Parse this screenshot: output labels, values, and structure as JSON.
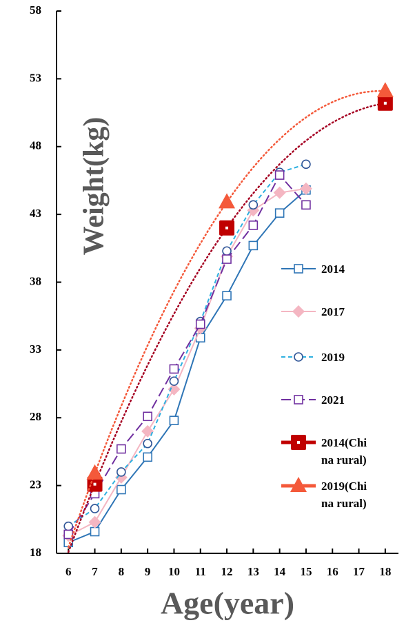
{
  "chart_data": {
    "type": "line",
    "x_label": "Age(year)",
    "y_label": "Weight(kg)",
    "xlim": [
      5.55,
      18.5
    ],
    "xticks": [
      6,
      7,
      8,
      9,
      10,
      11,
      12,
      13,
      14,
      15,
      16,
      17,
      18
    ],
    "ylim": [
      18,
      58
    ],
    "yticks": [
      18,
      23,
      28,
      33,
      38,
      43,
      48,
      53,
      58
    ],
    "series": [
      {
        "name": "2014",
        "color": "#2e75b6",
        "marker": "square",
        "dash": "solid",
        "x": [
          6,
          7,
          8,
          9,
          10,
          11,
          12,
          13,
          14,
          15
        ],
        "values": [
          18.8,
          19.6,
          22.7,
          25.1,
          27.8,
          33.9,
          37.0,
          40.7,
          43.1,
          44.8
        ]
      },
      {
        "name": "2017",
        "color": "#f4b6c2",
        "marker": "diamond",
        "dash": "solid",
        "x": [
          6,
          7,
          8,
          9,
          10,
          11,
          12,
          13,
          14,
          15
        ],
        "values": [
          19.3,
          20.3,
          23.6,
          27.0,
          30.1,
          34.6,
          39.9,
          43.3,
          44.6,
          44.9
        ]
      },
      {
        "name": "2019",
        "color": "#2eb0e0",
        "marker_color": "#2f5597",
        "marker": "circle",
        "dash": "short",
        "x": [
          6,
          7,
          8,
          9,
          10,
          11,
          12,
          13,
          14,
          15
        ],
        "values": [
          20.0,
          21.3,
          24.0,
          26.1,
          30.7,
          35.1,
          40.3,
          43.7,
          46.1,
          46.7
        ]
      },
      {
        "name": "2021",
        "color": "#7030a0",
        "marker": "square",
        "dash": "long",
        "x": [
          6,
          7,
          8,
          9,
          10,
          11,
          12,
          13,
          14,
          15
        ],
        "values": [
          19.4,
          22.4,
          25.7,
          28.1,
          31.6,
          34.9,
          39.7,
          42.2,
          45.9,
          43.7
        ]
      },
      {
        "name": "2014(China rural)",
        "color": "#c00000",
        "trend_color": "#a50021",
        "marker": "bigsquare",
        "dash": "none",
        "x": [
          7,
          12,
          18
        ],
        "values": [
          23.1,
          42.0,
          51.2
        ]
      },
      {
        "name": "2019(China rural)",
        "color": "#f4593a",
        "trend_color": "#f4593a",
        "marker": "triangle",
        "dash": "none",
        "x": [
          7,
          12,
          18
        ],
        "values": [
          23.9,
          43.9,
          52.1
        ]
      }
    ]
  }
}
